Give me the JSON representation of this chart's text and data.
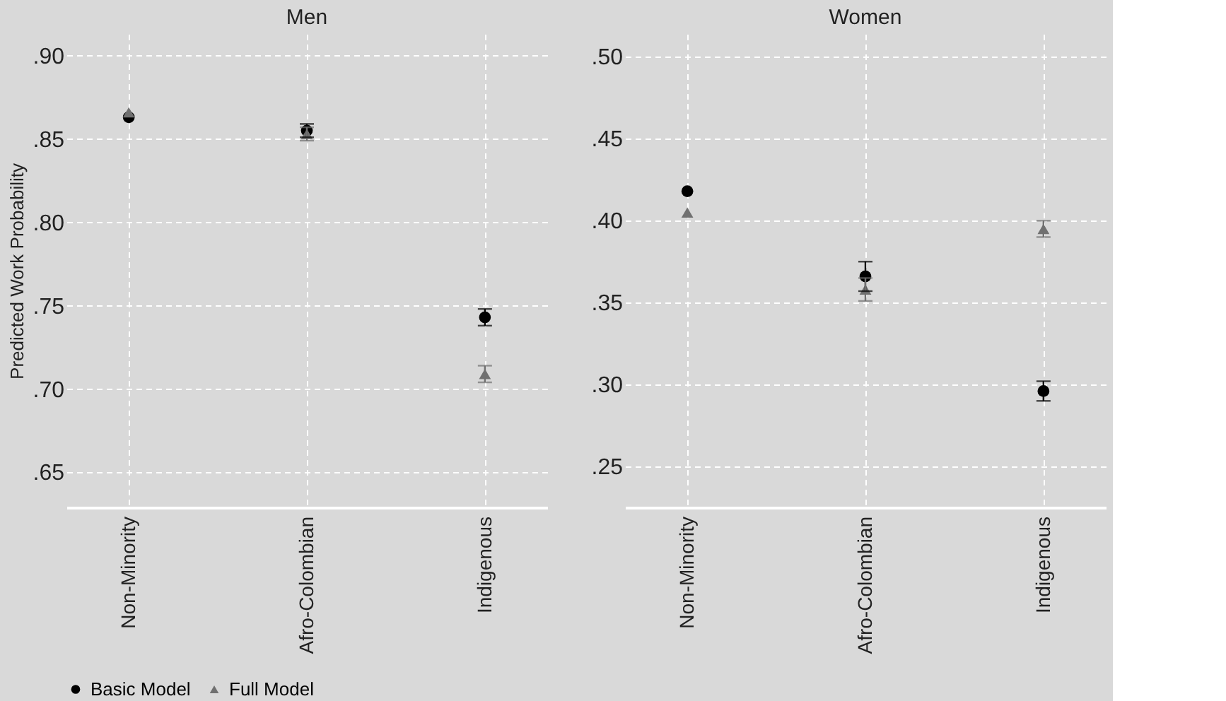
{
  "chart_data": [
    {
      "type": "scatter",
      "title": "Men",
      "ylabel": "Predicted Work Probability",
      "categories": [
        "Non-Minority",
        "Afro-Colombian",
        "Indigenous"
      ],
      "series": [
        {
          "name": "Basic Model",
          "color": "#000000",
          "marker": "circle",
          "values": [
            0.863,
            0.855,
            0.743
          ],
          "errors": [
            null,
            0.004,
            0.005
          ]
        },
        {
          "name": "Full Model",
          "color": "#707070",
          "marker": "triangle",
          "values": [
            0.866,
            0.853,
            0.709
          ],
          "errors": [
            null,
            0.004,
            0.005
          ]
        }
      ],
      "ylim": [
        0.629,
        0.913
      ],
      "yticks": [
        {
          "value": 0.65,
          "label": ".65"
        },
        {
          "value": 0.7,
          "label": ".70"
        },
        {
          "value": 0.75,
          "label": ".75"
        },
        {
          "value": 0.8,
          "label": ".80"
        },
        {
          "value": 0.85,
          "label": ".85"
        },
        {
          "value": 0.9,
          "label": ".90"
        }
      ],
      "grid": true,
      "legend": "bottom"
    },
    {
      "type": "scatter",
      "title": "Women",
      "categories": [
        "Non-Minority",
        "Afro-Colombian",
        "Indigenous"
      ],
      "series": [
        {
          "name": "Basic Model",
          "color": "#000000",
          "marker": "circle",
          "values": [
            0.418,
            0.366,
            0.296
          ],
          "errors": [
            null,
            0.009,
            0.006
          ]
        },
        {
          "name": "Full Model",
          "color": "#707070",
          "marker": "triangle",
          "values": [
            0.405,
            0.358,
            0.395
          ],
          "errors": [
            null,
            0.007,
            0.005
          ]
        }
      ],
      "ylim": [
        0.225,
        0.514
      ],
      "yticks": [
        {
          "value": 0.25,
          "label": ".25"
        },
        {
          "value": 0.3,
          "label": ".30"
        },
        {
          "value": 0.35,
          "label": ".35"
        },
        {
          "value": 0.4,
          "label": ".40"
        },
        {
          "value": 0.45,
          "label": ".45"
        },
        {
          "value": 0.5,
          "label": ".50"
        }
      ],
      "grid": true,
      "legend": "bottom"
    }
  ]
}
